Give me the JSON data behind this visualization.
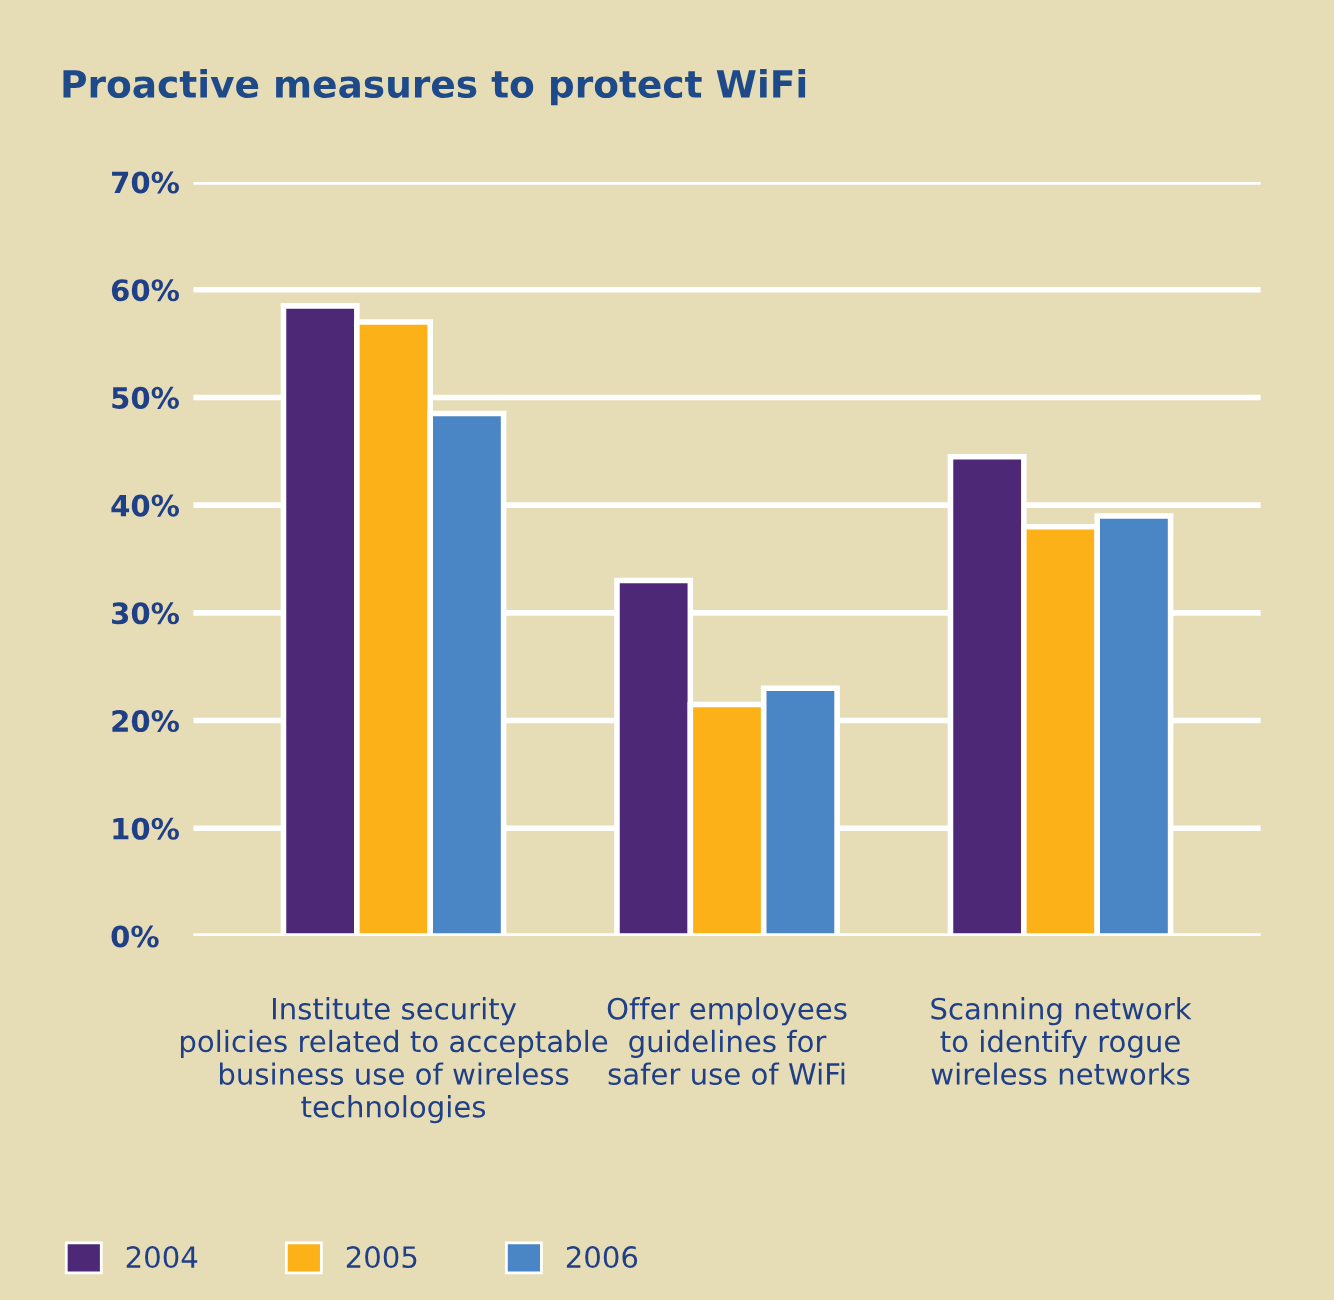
{
  "chart_data": {
    "type": "bar",
    "title": "Proactive measures to protect WiFi",
    "categories": [
      "Institute security\npolicies related to acceptable\nbusiness use of wireless\ntechnologies",
      "Offer employees\nguidelines for\nsafer use of WiFi",
      "Scanning network\nto identify rogue\nwireless networks"
    ],
    "series": [
      {
        "name": "2004",
        "color": "#4c2876",
        "values": [
          58.5,
          33,
          44.5
        ]
      },
      {
        "name": "2005",
        "color": "#fbb117",
        "values": [
          57,
          21.5,
          38
        ]
      },
      {
        "name": "2006",
        "color": "#4a86c5",
        "values": [
          48.5,
          23,
          39
        ]
      }
    ],
    "ylim": [
      0,
      70
    ],
    "yticks": [
      {
        "value": 0,
        "label": "0%"
      },
      {
        "value": 10,
        "label": "10%"
      },
      {
        "value": 20,
        "label": "20%"
      },
      {
        "value": 30,
        "label": "30%"
      },
      {
        "value": 40,
        "label": "40%"
      },
      {
        "value": 50,
        "label": "50%"
      },
      {
        "value": 60,
        "label": "60%"
      },
      {
        "value": 70,
        "label": "70%"
      }
    ],
    "grid": "y",
    "legend": "bottom left"
  }
}
